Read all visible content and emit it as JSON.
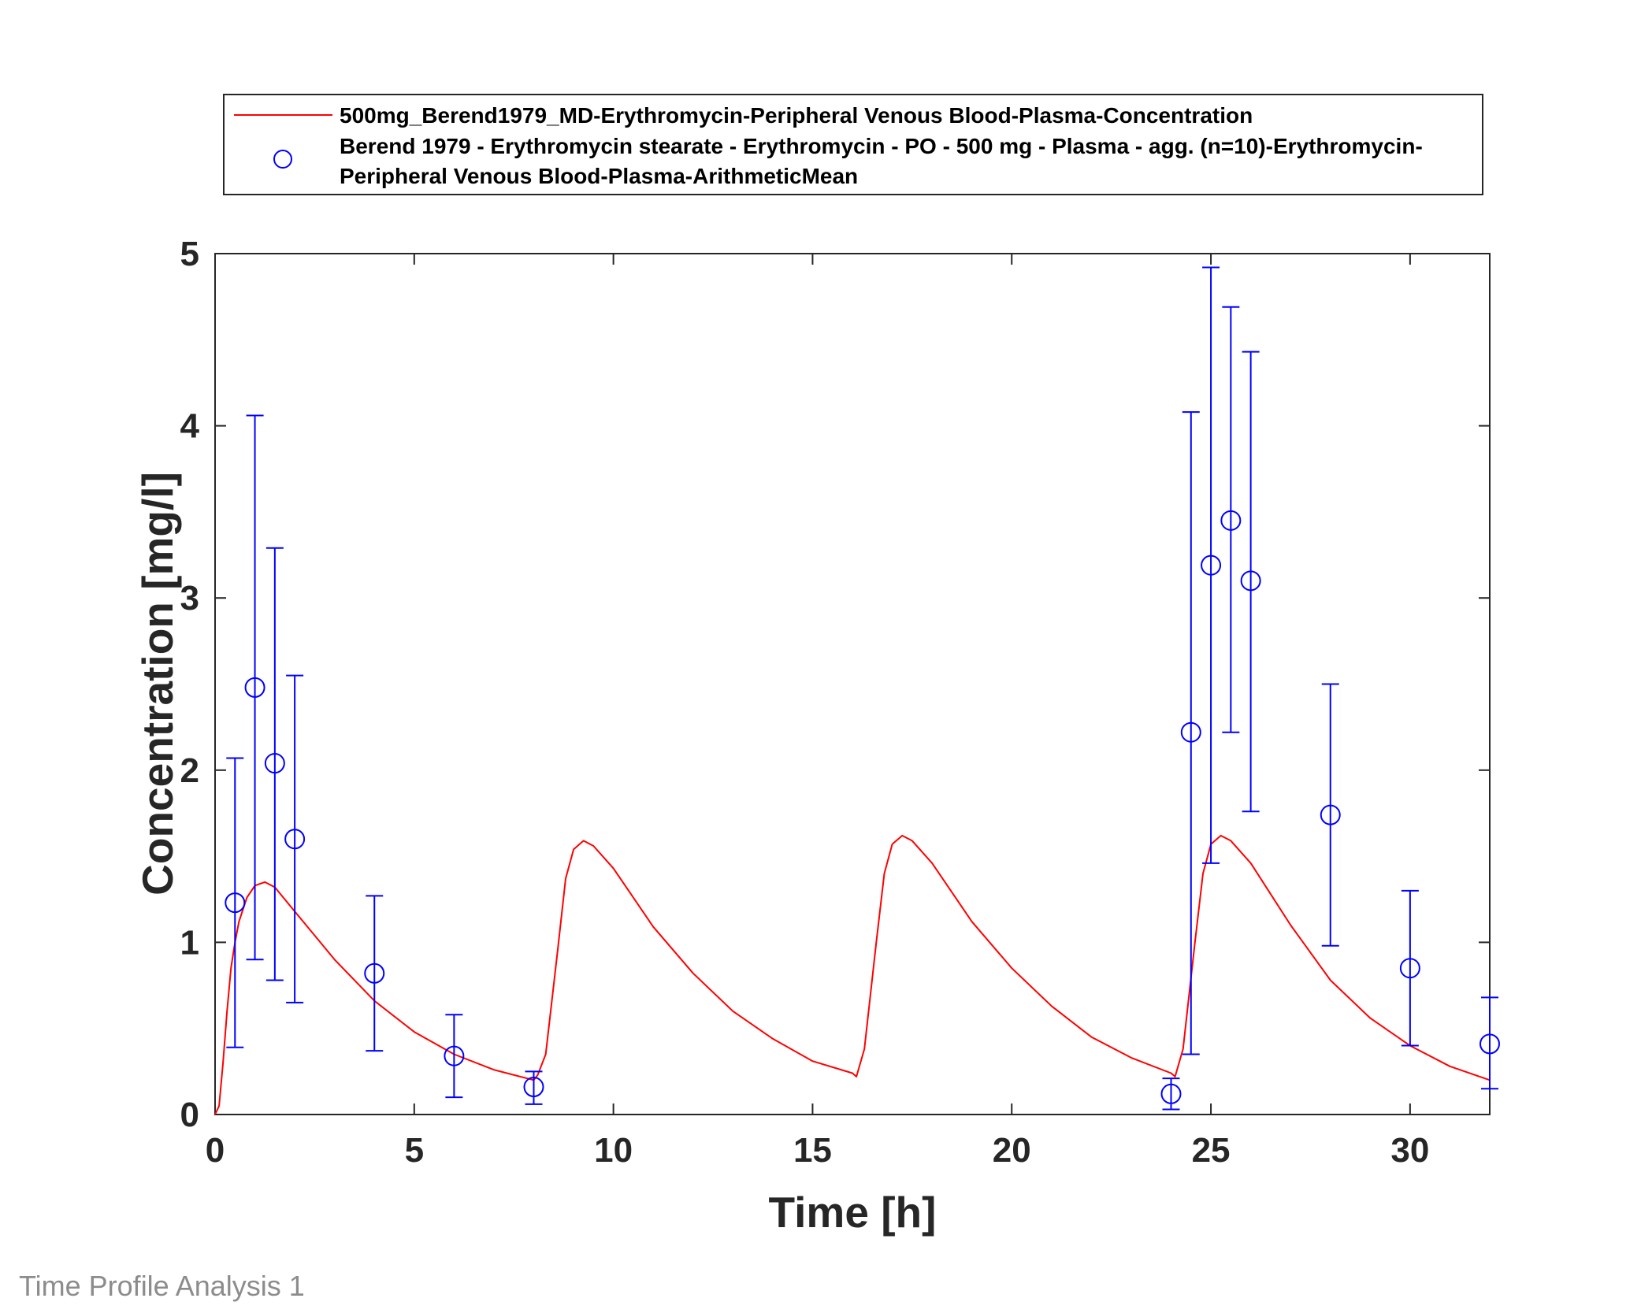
{
  "footer_label": "Time Profile Analysis 1",
  "colors": {
    "simulation": "#ff0000",
    "observed": "#0000ff",
    "axis": "#262626"
  },
  "legend": {
    "simulation_label": "500mg_Berend1979_MD-Erythromycin-Peripheral Venous Blood-Plasma-Concentration",
    "observed_label_line1": "Berend 1979 - Erythromycin stearate - Erythromycin - PO - 500 mg - Plasma - agg. (n=10)-Erythromycin-",
    "observed_label_line2": "Peripheral Venous Blood-Plasma-ArithmeticMean"
  },
  "chart_data": {
    "type": "line",
    "xlabel": "Time [h]",
    "ylabel": "Concentration [mg/l]",
    "xlim": [
      0,
      32
    ],
    "ylim": [
      0,
      5
    ],
    "x_ticks": [
      0,
      5,
      10,
      15,
      20,
      25,
      30
    ],
    "y_ticks": [
      0,
      1,
      2,
      3,
      4,
      5
    ],
    "grid": false,
    "legend_position": "top",
    "series": [
      {
        "name": "500mg_Berend1979_MD-Erythromycin-Peripheral Venous Blood-Plasma-Concentration",
        "kind": "line",
        "x": [
          0,
          0.1,
          0.2,
          0.3,
          0.4,
          0.5,
          0.6,
          0.8,
          1.0,
          1.25,
          1.5,
          2,
          3,
          4,
          5,
          6,
          7,
          8,
          8.1,
          8.3,
          8.6,
          8.8,
          9.0,
          9.25,
          9.5,
          10,
          11,
          12,
          13,
          14,
          15,
          16,
          16.1,
          16.3,
          16.6,
          16.8,
          17.0,
          17.25,
          17.5,
          18,
          19,
          20,
          21,
          22,
          23,
          24,
          24.1,
          24.3,
          24.6,
          24.8,
          25.0,
          25.25,
          25.5,
          26,
          27,
          28,
          29,
          30,
          31,
          32
        ],
        "y": [
          0,
          0.05,
          0.3,
          0.6,
          0.85,
          1.0,
          1.12,
          1.26,
          1.33,
          1.35,
          1.32,
          1.18,
          0.9,
          0.66,
          0.48,
          0.35,
          0.26,
          0.2,
          0.23,
          0.35,
          0.95,
          1.37,
          1.54,
          1.59,
          1.56,
          1.43,
          1.09,
          0.82,
          0.6,
          0.44,
          0.31,
          0.24,
          0.22,
          0.38,
          1.0,
          1.4,
          1.57,
          1.62,
          1.59,
          1.46,
          1.12,
          0.85,
          0.63,
          0.45,
          0.33,
          0.24,
          0.22,
          0.38,
          1.0,
          1.4,
          1.57,
          1.62,
          1.59,
          1.46,
          1.1,
          0.78,
          0.56,
          0.4,
          0.28,
          0.2
        ]
      },
      {
        "name": "Berend 1979 - Erythromycin stearate - Erythromycin - PO - 500 mg - Plasma - agg. (n=10)-Erythromycin-Peripheral Venous Blood-Plasma-ArithmeticMean",
        "kind": "scatter_errorbar",
        "x": [
          0.5,
          1.0,
          1.5,
          2.0,
          4.0,
          6.0,
          8.0,
          24.0,
          24.5,
          25.0,
          25.5,
          26.0,
          28.0,
          30.0,
          32.0
        ],
        "y": [
          1.23,
          2.48,
          2.04,
          1.6,
          0.82,
          0.34,
          0.16,
          0.12,
          2.22,
          3.19,
          3.45,
          3.1,
          1.74,
          0.85,
          0.41
        ],
        "y_low": [
          0.39,
          0.9,
          0.78,
          0.65,
          0.37,
          0.1,
          0.06,
          0.03,
          0.35,
          1.46,
          2.22,
          1.76,
          0.98,
          0.4,
          0.15
        ],
        "y_high": [
          2.07,
          4.06,
          3.29,
          2.55,
          1.27,
          0.58,
          0.25,
          0.21,
          4.08,
          4.92,
          4.69,
          4.43,
          2.5,
          1.3,
          0.68
        ]
      }
    ]
  }
}
